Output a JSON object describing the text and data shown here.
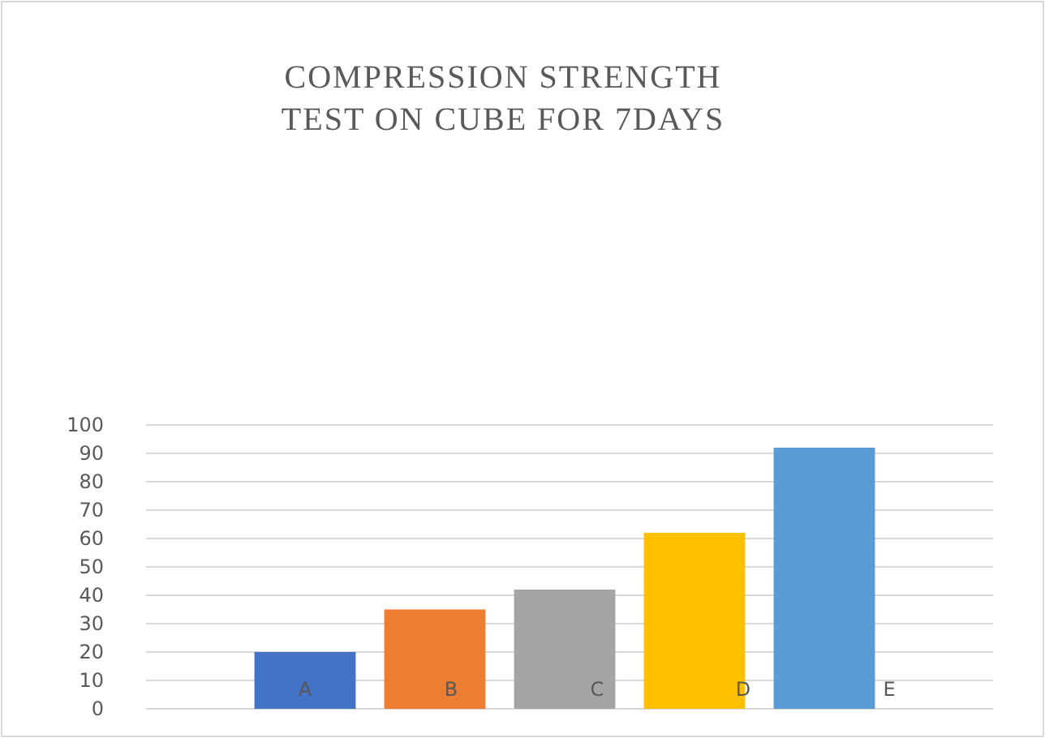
{
  "chart_data": {
    "type": "bar",
    "title": "COMPRESSION STRENGTH TEST ON CUBE FOR 7DAYS",
    "categories": [
      "A",
      "B",
      "C",
      "D",
      "E"
    ],
    "values": [
      20,
      35,
      42,
      62,
      92
    ],
    "colors": [
      "#4472c4",
      "#ed7d31",
      "#a5a5a5",
      "#ffc000",
      "#5b9bd5"
    ],
    "ylim": [
      0,
      100
    ],
    "yticks": [
      0,
      10,
      20,
      30,
      40,
      50,
      60,
      70,
      80,
      90,
      100
    ],
    "grid": "y"
  }
}
